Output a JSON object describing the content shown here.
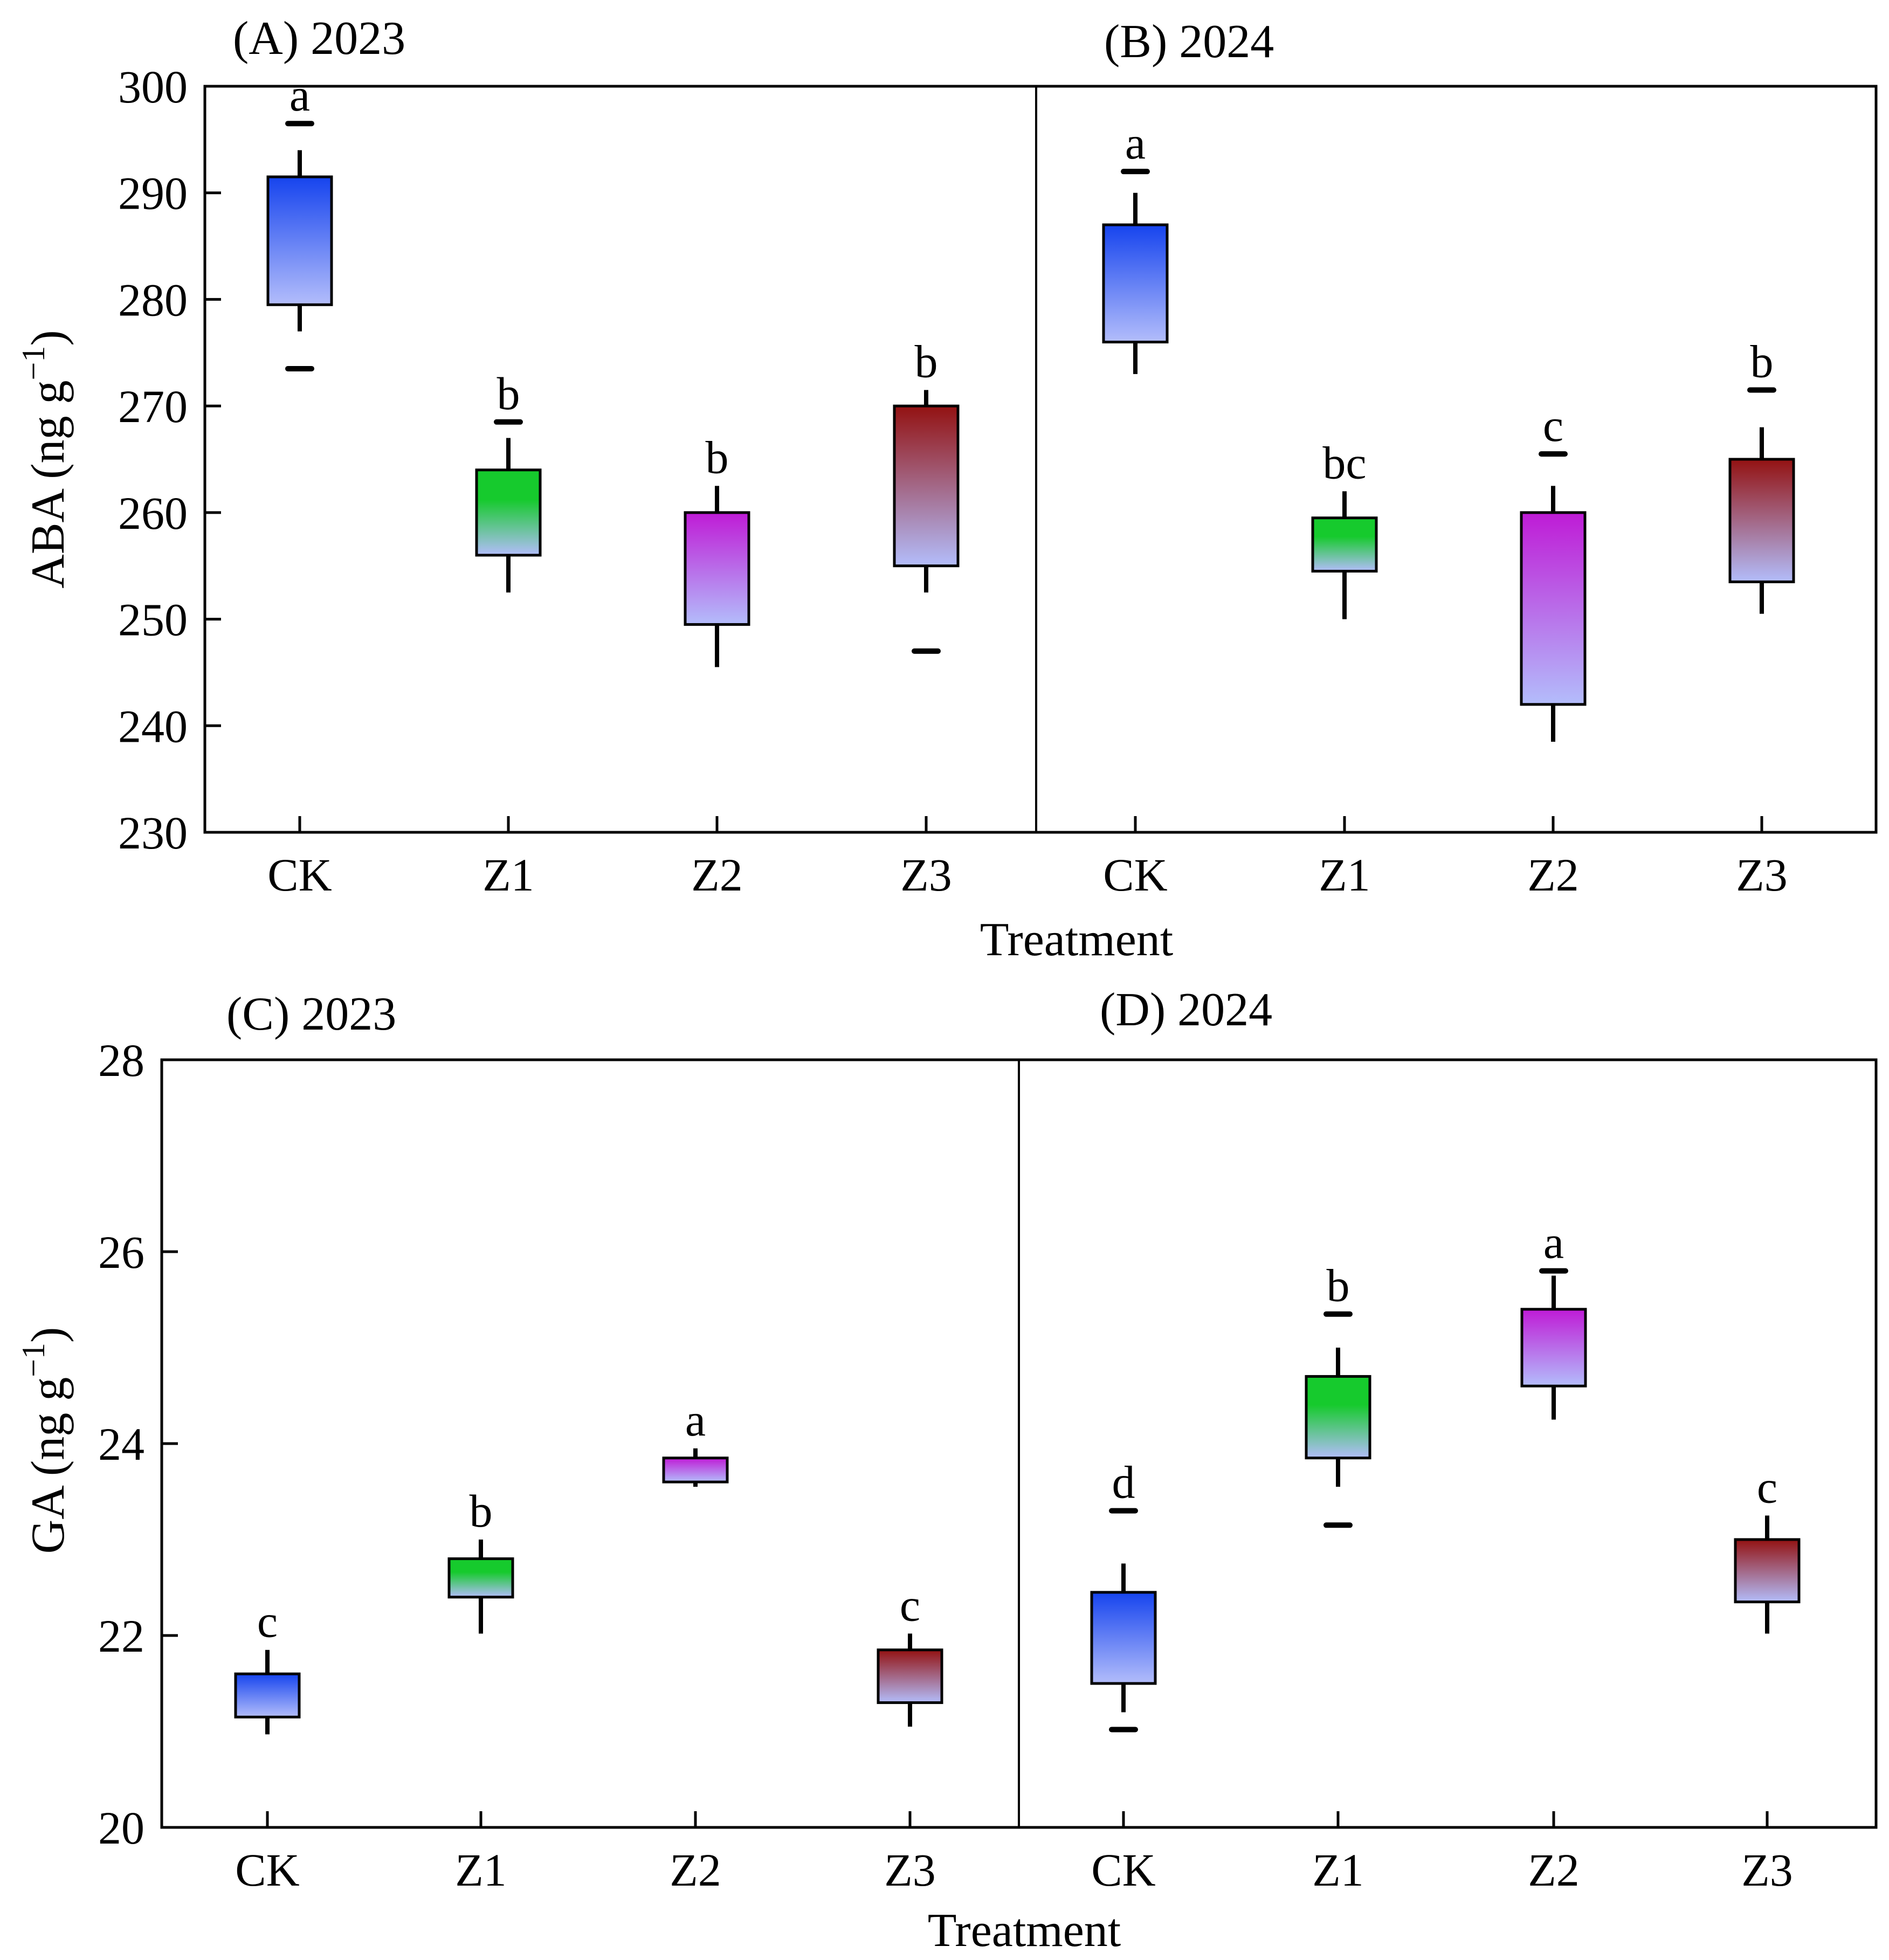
{
  "chart_data": [
    {
      "type": "box",
      "panel_label": "(A) 2023",
      "ylabel_main": "ABA (ng g",
      "ylabel_sup": "−1",
      "ylabel_close": ")",
      "ylim": [
        230,
        300
      ],
      "yticks": [
        "230",
        "240",
        "250",
        "260",
        "270",
        "280",
        "290",
        "300"
      ],
      "xlabel": "Treatment",
      "categories": [
        "CK",
        "Z1",
        "Z2",
        "Z3"
      ],
      "boxes": [
        {
          "q1": 279.5,
          "q3": 291.5,
          "whisker_high": 294,
          "whisker_low": 277,
          "outlier_high": 296.5,
          "outlier_low": 273.5,
          "sig": "a"
        },
        {
          "q1": 256,
          "q3": 264,
          "whisker_high": 267,
          "whisker_low": 252.5,
          "outlier_high": 268.5,
          "outlier_low": null,
          "sig": "b"
        },
        {
          "q1": 249.5,
          "q3": 260,
          "whisker_high": 262.5,
          "whisker_low": 245.5,
          "outlier_high": null,
          "outlier_low": null,
          "sig": "b"
        },
        {
          "q1": 255,
          "q3": 270,
          "whisker_high": 271.5,
          "whisker_low": 252.5,
          "outlier_high": null,
          "outlier_low": 247,
          "sig": "b"
        }
      ]
    },
    {
      "type": "box",
      "panel_label": "(B) 2024",
      "ylim": [
        230,
        300
      ],
      "xlabel": "Treatment",
      "categories": [
        "CK",
        "Z1",
        "Z2",
        "Z3"
      ],
      "boxes": [
        {
          "q1": 276,
          "q3": 287,
          "whisker_high": 290,
          "whisker_low": 273,
          "outlier_high": 292,
          "outlier_low": null,
          "sig": "a"
        },
        {
          "q1": 254.5,
          "q3": 259.5,
          "whisker_high": 262,
          "whisker_low": 250,
          "outlier_high": null,
          "outlier_low": null,
          "sig": "bc"
        },
        {
          "q1": 242,
          "q3": 260,
          "whisker_high": 262.5,
          "whisker_low": 238.5,
          "outlier_high": 265.5,
          "outlier_low": null,
          "sig": "c"
        },
        {
          "q1": 253.5,
          "q3": 265,
          "whisker_high": 268,
          "whisker_low": 250.5,
          "outlier_high": 271.5,
          "outlier_low": null,
          "sig": "b"
        }
      ]
    },
    {
      "type": "box",
      "panel_label": "(C) 2023",
      "ylabel_main": "GA (ng g",
      "ylabel_sup": "−1",
      "ylabel_close": ")",
      "ylim": [
        20,
        28
      ],
      "yticks": [
        "20",
        "22",
        "24",
        "26",
        "28"
      ],
      "xlabel": "Treatment",
      "categories": [
        "CK",
        "Z1",
        "Z2",
        "Z3"
      ],
      "boxes": [
        {
          "q1": 21.15,
          "q3": 21.6,
          "whisker_high": 21.85,
          "whisker_low": 20.97,
          "outlier_high": null,
          "outlier_low": null,
          "sig": "c"
        },
        {
          "q1": 22.4,
          "q3": 22.8,
          "whisker_high": 23.0,
          "whisker_low": 22.02,
          "outlier_high": null,
          "outlier_low": null,
          "sig": "b"
        },
        {
          "q1": 23.6,
          "q3": 23.85,
          "whisker_high": 23.95,
          "whisker_low": 23.55,
          "outlier_high": null,
          "outlier_low": null,
          "sig": "a"
        },
        {
          "q1": 21.3,
          "q3": 21.85,
          "whisker_high": 22.02,
          "whisker_low": 21.05,
          "outlier_high": null,
          "outlier_low": null,
          "sig": "c"
        }
      ]
    },
    {
      "type": "box",
      "panel_label": "(D) 2024",
      "ylim": [
        20,
        28
      ],
      "xlabel": "Treatment",
      "categories": [
        "CK",
        "Z1",
        "Z2",
        "Z3"
      ],
      "boxes": [
        {
          "q1": 21.5,
          "q3": 22.45,
          "whisker_high": 22.75,
          "whisker_low": 21.2,
          "outlier_high": 23.3,
          "outlier_low": 21.02,
          "sig": "d"
        },
        {
          "q1": 23.85,
          "q3": 24.7,
          "whisker_high": 25.0,
          "whisker_low": 23.55,
          "outlier_high": 25.35,
          "outlier_low": 23.15,
          "sig": "b"
        },
        {
          "q1": 24.6,
          "q3": 25.4,
          "whisker_high": 25.75,
          "whisker_low": 24.25,
          "outlier_high": 25.8,
          "outlier_low": null,
          "sig": "a"
        },
        {
          "q1": 22.35,
          "q3": 23.0,
          "whisker_high": 23.25,
          "whisker_low": 22.02,
          "outlier_high": null,
          "outlier_low": null,
          "sig": "c"
        }
      ]
    }
  ],
  "colors": {
    "base": "#b3bdfb",
    "CK": "#1644ee",
    "Z1": "#16ca2d",
    "Z2": "#bf1bd6",
    "Z3": "#931212"
  }
}
